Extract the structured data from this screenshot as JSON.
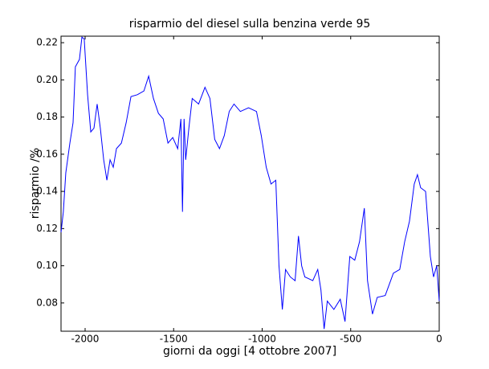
{
  "chart_data": {
    "type": "line",
    "title": "risparmio del diesel sulla benzina verde 95",
    "x_label": "giorni da oggi [4 ottobre 2007]",
    "y_label": "risparmio /%",
    "xlim": [
      -2136,
      0
    ],
    "ylim": [
      0.0648,
      0.2235
    ],
    "xticks": [
      -2000,
      -1500,
      -1000,
      -500,
      0
    ],
    "yticks": [
      0.08,
      {
        "value": 0.1,
        "label": "0.10"
      },
      0.12,
      0.14,
      0.16,
      0.18,
      {
        "value": 0.2,
        "label": "0.20"
      },
      0.22
    ],
    "grid": false,
    "x": [
      -2136,
      -2123,
      -2109,
      -2086,
      -2068,
      -2055,
      -2032,
      -2018,
      -2005,
      -1986,
      -1968,
      -1950,
      -1932,
      -1914,
      -1895,
      -1877,
      -1859,
      -1841,
      -1823,
      -1795,
      -1768,
      -1741,
      -1705,
      -1668,
      -1641,
      -1614,
      -1586,
      -1559,
      -1532,
      -1505,
      -1477,
      -1459,
      -1450,
      -1441,
      -1432,
      -1414,
      -1395,
      -1359,
      -1323,
      -1295,
      -1268,
      -1241,
      -1214,
      -1186,
      -1159,
      -1123,
      -1077,
      -1032,
      -1005,
      -977,
      -950,
      -923,
      -905,
      -886,
      -868,
      -841,
      -814,
      -795,
      -777,
      -759,
      -714,
      -686,
      -668,
      -650,
      -632,
      -595,
      -559,
      -532,
      -505,
      -477,
      -450,
      -423,
      -405,
      -377,
      -350,
      -305,
      -259,
      -223,
      -195,
      -168,
      -141,
      -123,
      -105,
      -77,
      -50,
      -32,
      -14,
      0
    ],
    "series": [
      {
        "color": "#0000ff",
        "values": [
          0.118,
          0.129,
          0.15,
          0.166,
          0.177,
          0.207,
          0.211,
          0.223,
          0.222,
          0.192,
          0.172,
          0.174,
          0.187,
          0.174,
          0.157,
          0.146,
          0.157,
          0.153,
          0.163,
          0.166,
          0.177,
          0.191,
          0.192,
          0.194,
          0.202,
          0.19,
          0.182,
          0.179,
          0.166,
          0.169,
          0.163,
          0.179,
          0.129,
          0.179,
          0.157,
          0.174,
          0.19,
          0.187,
          0.196,
          0.19,
          0.168,
          0.163,
          0.17,
          0.183,
          0.187,
          0.183,
          0.185,
          0.183,
          0.17,
          0.153,
          0.144,
          0.146,
          0.1,
          0.0765,
          0.098,
          0.094,
          0.092,
          0.116,
          0.1,
          0.094,
          0.092,
          0.098,
          0.087,
          0.066,
          0.081,
          0.0765,
          0.082,
          0.07,
          0.105,
          0.103,
          0.113,
          0.131,
          0.092,
          0.074,
          0.083,
          0.084,
          0.096,
          0.098,
          0.113,
          0.124,
          0.144,
          0.149,
          0.142,
          0.14,
          0.105,
          0.094,
          0.1,
          0.081
        ]
      }
    ]
  }
}
